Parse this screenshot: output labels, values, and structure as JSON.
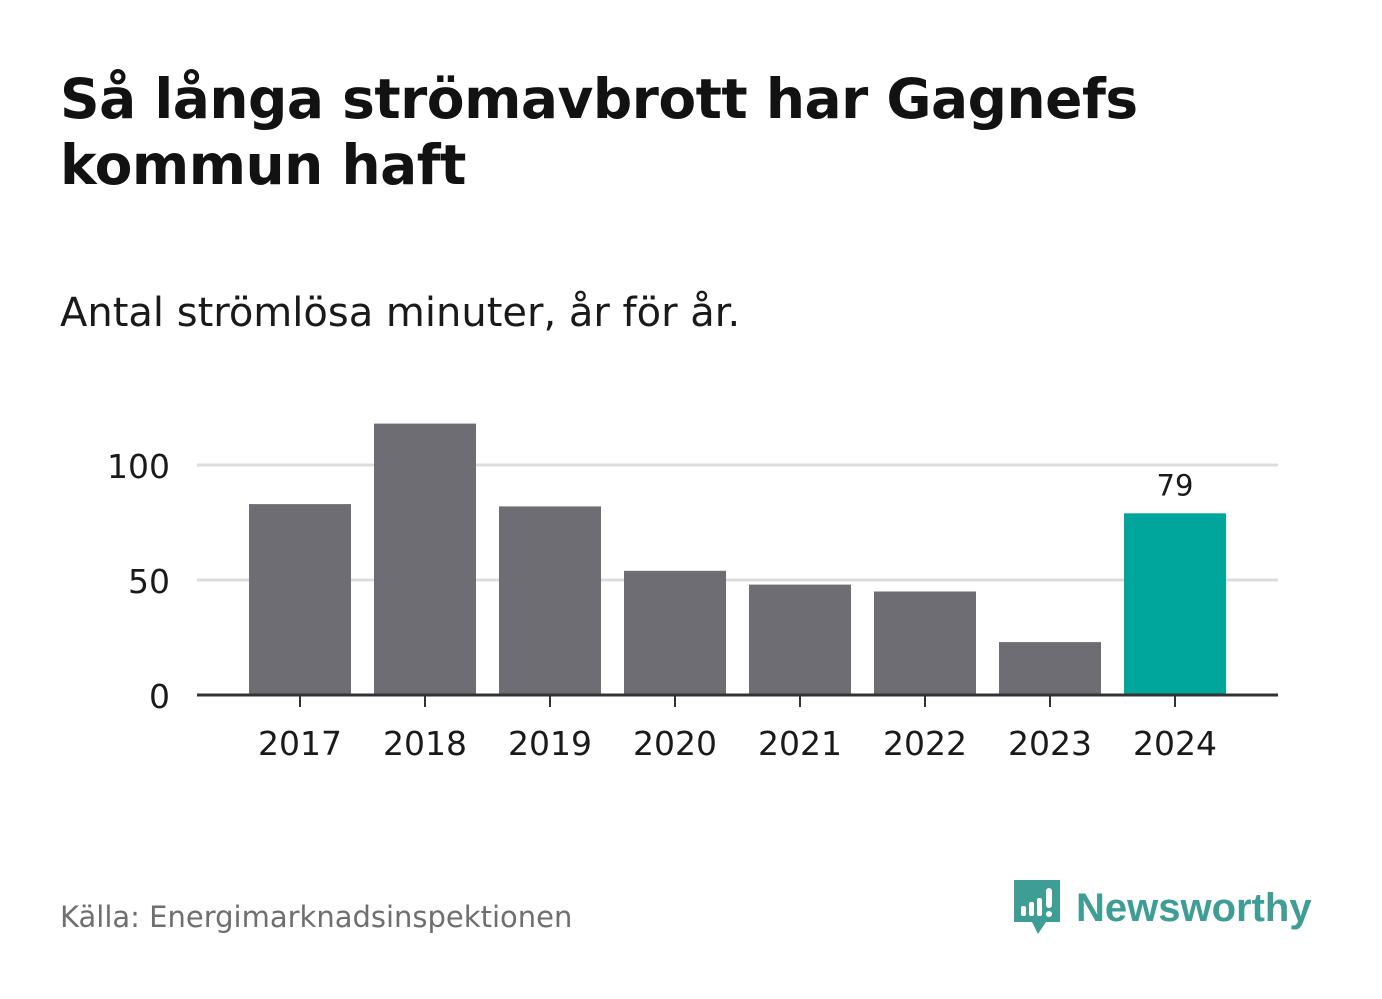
{
  "title": "Så långa strömavbrott har Gagnefs kommun haft",
  "subtitle": "Antal strömlösa minuter, år för år.",
  "source": "Källa: Energimarknadsinspektionen",
  "brand": {
    "name": "Newsworthy",
    "icon": "newsworthy-logo-icon",
    "color": "#3e9e96"
  },
  "chart_data": {
    "type": "bar",
    "categories": [
      "2017",
      "2018",
      "2019",
      "2020",
      "2021",
      "2022",
      "2023",
      "2024"
    ],
    "values": [
      83,
      118,
      82,
      54,
      48,
      45,
      23,
      79
    ],
    "highlight_index": 7,
    "data_labels": [
      {
        "index": 7,
        "text": "79"
      }
    ],
    "yticks": [
      0,
      50,
      100
    ],
    "ylim": [
      0,
      120
    ],
    "grid": true,
    "colors": {
      "bar": "#6e6d73",
      "highlight": "#00a59b",
      "grid": "#dddddd",
      "axis": "#333333"
    }
  }
}
